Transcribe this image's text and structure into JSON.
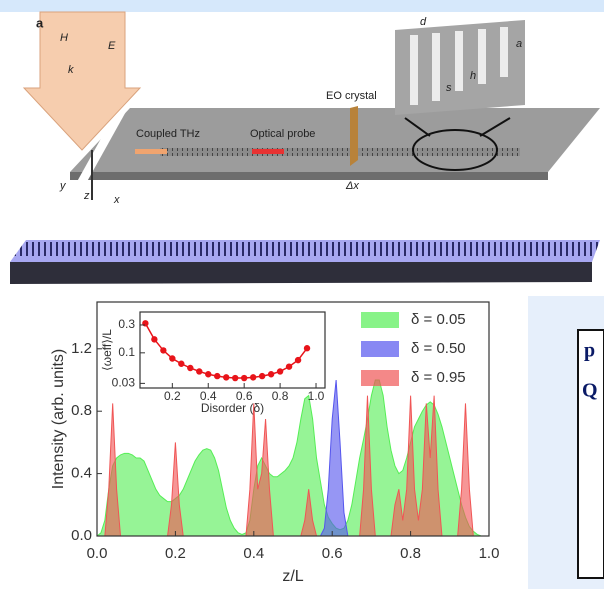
{
  "schematic": {
    "panel_label": "a",
    "h_field": "H",
    "e_field": "E",
    "k_vector": "k",
    "coupled": "Coupled THz",
    "probe": "Optical probe",
    "crystal": "EO crystal",
    "delta_x": "Δx",
    "d": "d",
    "h": "h",
    "s": "s",
    "a": "a",
    "axis_y": "y",
    "axis_z": "z",
    "axis_x": "x"
  },
  "side_panel": {
    "lines": [
      "p",
      "Q"
    ]
  },
  "chart_data": [
    {
      "type": "area",
      "xlabel": "z/L",
      "ylabel": "Intensity (arb. units)",
      "legend": "upper right",
      "xlim": [
        0,
        1
      ],
      "ylim": [
        0,
        1.5
      ],
      "xticks": [
        {
          "value": 0,
          "label": "0.0"
        },
        0.2,
        0.4,
        0.6,
        0.8,
        {
          "value": 1,
          "label": "1.0"
        }
      ],
      "yticks": [
        {
          "value": 0,
          "label": "0.0"
        },
        0.4,
        0.8,
        1.2
      ],
      "x": [
        0,
        0.01,
        0.02,
        0.03,
        0.04,
        0.05,
        0.06,
        0.07,
        0.08,
        0.09,
        0.1,
        0.11,
        0.12,
        0.13,
        0.14,
        0.15,
        0.16,
        0.17,
        0.18,
        0.19,
        0.2,
        0.21,
        0.22,
        0.23,
        0.24,
        0.25,
        0.26,
        0.27,
        0.28,
        0.29,
        0.3,
        0.31,
        0.32,
        0.33,
        0.34,
        0.35,
        0.36,
        0.37,
        0.38,
        0.39,
        0.4,
        0.41,
        0.42,
        0.43,
        0.44,
        0.45,
        0.46,
        0.47,
        0.48,
        0.49,
        0.5,
        0.51,
        0.52,
        0.53,
        0.54,
        0.55,
        0.56,
        0.57,
        0.58,
        0.59,
        0.6,
        0.61,
        0.62,
        0.63,
        0.64,
        0.65,
        0.66,
        0.67,
        0.68,
        0.69,
        0.7,
        0.71,
        0.72,
        0.73,
        0.74,
        0.75,
        0.76,
        0.77,
        0.78,
        0.79,
        0.8,
        0.81,
        0.82,
        0.83,
        0.84,
        0.85,
        0.86,
        0.87,
        0.88,
        0.89,
        0.9,
        0.91,
        0.92,
        0.93,
        0.94,
        0.95,
        0.96,
        0.97,
        0.98,
        0.99,
        1
      ],
      "series": [
        {
          "name": "δ = 0.05",
          "color": "#55ee55",
          "values": [
            0,
            0.02,
            0.1,
            0.3,
            0.45,
            0.5,
            0.52,
            0.53,
            0.53,
            0.52,
            0.5,
            0.5,
            0.48,
            0.42,
            0.36,
            0.3,
            0.26,
            0.24,
            0.22,
            0.22,
            0.24,
            0.26,
            0.3,
            0.36,
            0.42,
            0.48,
            0.52,
            0.55,
            0.56,
            0.55,
            0.5,
            0.42,
            0.3,
            0.18,
            0.1,
            0.05,
            0.02,
            0.01,
            0.02,
            0.1,
            0.3,
            0.45,
            0.5,
            0.45,
            0.4,
            0.38,
            0.38,
            0.4,
            0.42,
            0.45,
            0.5,
            0.6,
            0.75,
            0.88,
            0.9,
            0.75,
            0.5,
            0.35,
            0.2,
            0.12,
            0.08,
            0.05,
            0.04,
            0.05,
            0.1,
            0.2,
            0.35,
            0.5,
            0.62,
            0.75,
            0.9,
            1.0,
            1.0,
            0.9,
            0.7,
            0.55,
            0.45,
            0.4,
            0.42,
            0.5,
            0.6,
            0.7,
            0.75,
            0.8,
            0.84,
            0.86,
            0.84,
            0.78,
            0.7,
            0.6,
            0.5,
            0.4,
            0.3,
            0.2,
            0.12,
            0.06,
            0.03,
            0.01,
            0,
            0,
            0
          ]
        },
        {
          "name": "δ = 0.50",
          "color": "#5555ee",
          "values": [
            0,
            0,
            0,
            0,
            0,
            0,
            0,
            0,
            0,
            0,
            0,
            0,
            0,
            0,
            0,
            0,
            0,
            0,
            0,
            0,
            0,
            0,
            0,
            0,
            0,
            0,
            0,
            0,
            0,
            0,
            0,
            0,
            0,
            0,
            0,
            0,
            0,
            0,
            0,
            0,
            0,
            0,
            0,
            0,
            0,
            0,
            0,
            0,
            0,
            0,
            0,
            0,
            0,
            0,
            0,
            0,
            0,
            0,
            0.05,
            0.3,
            0.75,
            1.0,
            0.6,
            0.15,
            0,
            0,
            0,
            0,
            0,
            0,
            0,
            0,
            0,
            0,
            0,
            0,
            0,
            0,
            0,
            0,
            0,
            0,
            0,
            0,
            0,
            0,
            0,
            0,
            0,
            0,
            0,
            0,
            0,
            0,
            0,
            0,
            0,
            0,
            0,
            0,
            0
          ]
        },
        {
          "name": "δ = 0.95",
          "color": "#f05555",
          "values": [
            0,
            0,
            0,
            0.3,
            0.85,
            0.3,
            0,
            0,
            0,
            0,
            0,
            0,
            0,
            0,
            0,
            0,
            0,
            0,
            0,
            0.2,
            0.6,
            0.2,
            0,
            0,
            0,
            0,
            0,
            0,
            0,
            0,
            0,
            0,
            0,
            0,
            0,
            0,
            0,
            0,
            0,
            0.3,
            0.85,
            0.3,
            0.4,
            0.75,
            0.3,
            0,
            0,
            0,
            0,
            0,
            0,
            0,
            0,
            0.1,
            0.3,
            0.1,
            0,
            0,
            0,
            0,
            0,
            0,
            0,
            0,
            0,
            0,
            0,
            0,
            0.3,
            0.9,
            0.3,
            0,
            0,
            0,
            0,
            0,
            0.2,
            0.3,
            0.1,
            0.3,
            0.9,
            0.3,
            0.1,
            0.3,
            0.85,
            0.5,
            0.9,
            0.3,
            0,
            0,
            0,
            0,
            0,
            0.3,
            0.85,
            0.3,
            0,
            0,
            0,
            0,
            0
          ]
        }
      ]
    },
    {
      "type": "line",
      "xlabel": "Disorder (δ)",
      "ylabel": "⟨ωeff⟩/L",
      "log_y": true,
      "color": "#e8141a",
      "xlim": [
        0.02,
        1.05
      ],
      "ylim": [
        0.025,
        0.5
      ],
      "xticks": [
        0.2,
        0.4,
        0.6,
        0.8,
        {
          "value": 1,
          "label": "1.0"
        }
      ],
      "yticks": [
        0.03,
        0.1,
        0.3
      ],
      "x": [
        0.05,
        0.1,
        0.15,
        0.2,
        0.25,
        0.3,
        0.35,
        0.4,
        0.45,
        0.5,
        0.55,
        0.6,
        0.65,
        0.7,
        0.75,
        0.8,
        0.85,
        0.9,
        0.95
      ],
      "values": [
        0.32,
        0.17,
        0.11,
        0.08,
        0.065,
        0.055,
        0.048,
        0.043,
        0.04,
        0.038,
        0.037,
        0.037,
        0.038,
        0.04,
        0.043,
        0.048,
        0.058,
        0.075,
        0.12
      ]
    }
  ]
}
